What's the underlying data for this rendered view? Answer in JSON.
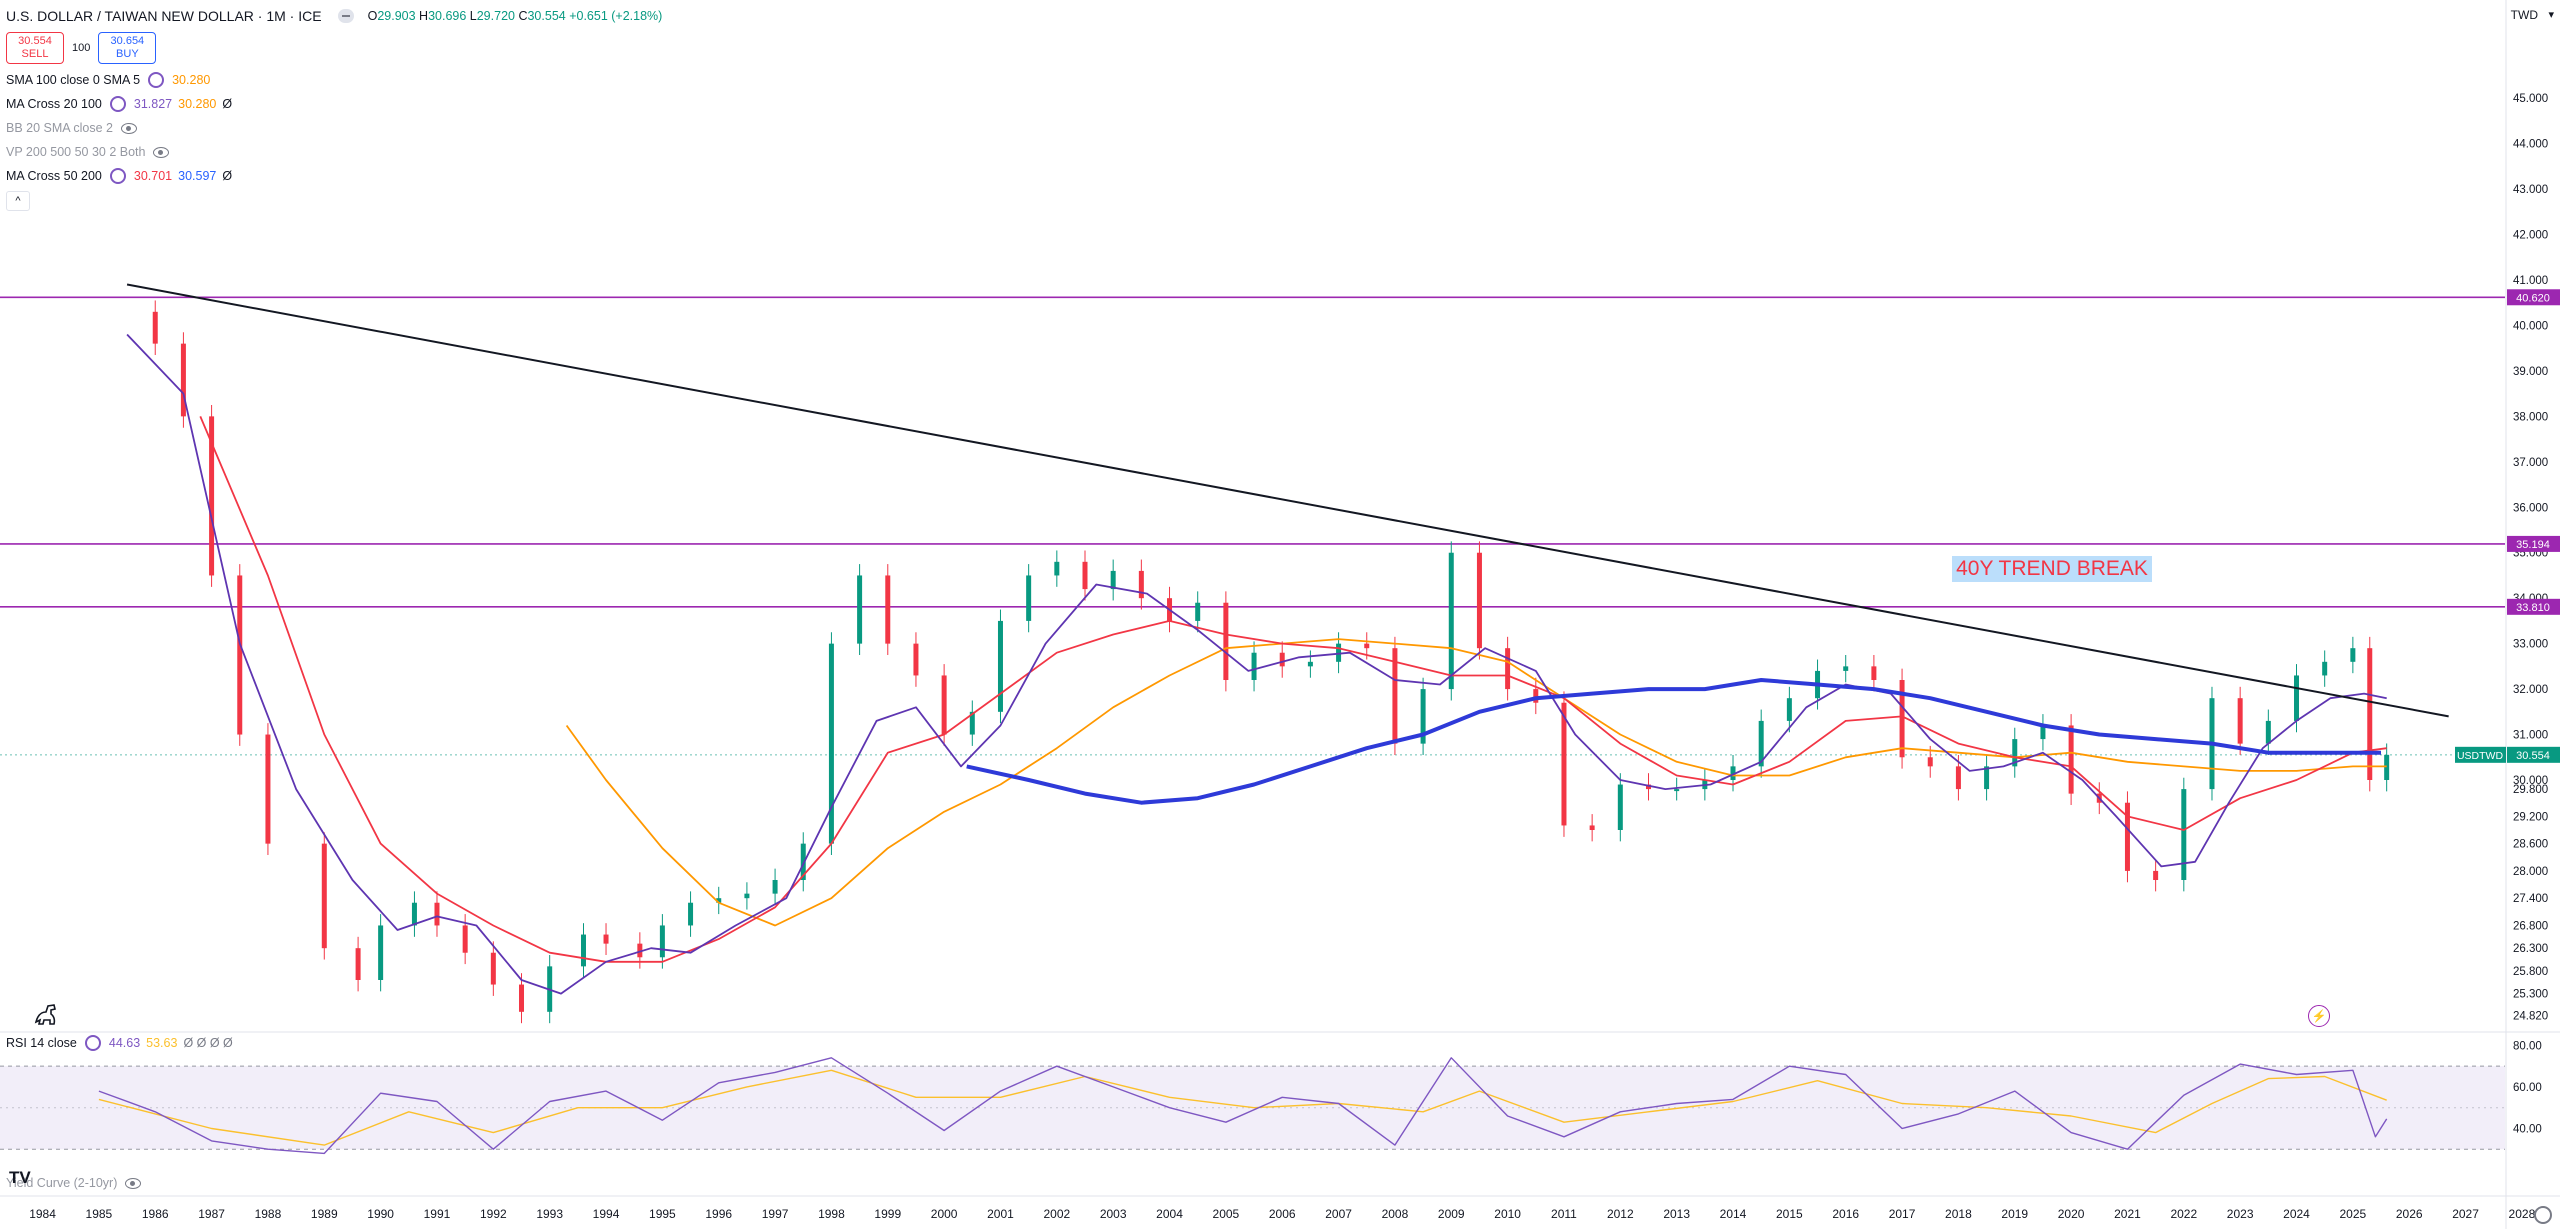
{
  "header": {
    "symbol_title": "U.S. DOLLAR / TAIWAN NEW DOLLAR · 1M · ICE",
    "ohlc": {
      "o_label": "O",
      "o": "29.903",
      "h_label": "H",
      "h": "30.696",
      "l_label": "L",
      "l": "29.720",
      "c_label": "C",
      "c": "30.554",
      "change": "+0.651 (+2.18%)"
    },
    "sell_price": "30.554",
    "sell_label": "SELL",
    "qty": "100",
    "buy_price": "30.654",
    "buy_label": "BUY",
    "currency": "TWD"
  },
  "indicators": [
    {
      "name": "SMA 100 close 0 SMA 5",
      "values": [
        {
          "v": "30.280",
          "color": "#ff9800"
        }
      ],
      "suffix": "",
      "dim": false,
      "gear": true
    },
    {
      "name": "MA Cross 20 100",
      "values": [
        {
          "v": "31.827",
          "color": "#7e57c2"
        },
        {
          "v": "30.280",
          "color": "#ff9800"
        }
      ],
      "suffix": "Ø",
      "dim": false,
      "gear": true
    },
    {
      "name": "BB 20 SMA close 2",
      "values": [],
      "suffix": "",
      "dim": true,
      "gear": false
    },
    {
      "name": "VP 200 500 50 30 2 Both",
      "values": [],
      "suffix": "",
      "dim": true,
      "gear": false
    },
    {
      "name": "MA Cross 50 200",
      "values": [
        {
          "v": "30.701",
          "color": "#f23645"
        },
        {
          "v": "30.597",
          "color": "#2962ff"
        }
      ],
      "suffix": "Ø",
      "dim": false,
      "gear": true
    }
  ],
  "rsi": {
    "name": "RSI 14 close",
    "v1": "44.63",
    "v2": "53.63",
    "suffix": "Ø Ø Ø Ø"
  },
  "yield_curve": {
    "name": "Yield Curve (2-10yr)"
  },
  "annotation": "40Y TREND BREAK",
  "symbol_tag": "USDTWD",
  "icons": {
    "sell": "sell-button",
    "logo": "tradingview-logo-icon",
    "dino": "dinosaur-icon",
    "bolt": "lightning-icon",
    "gear": "settings-gear-icon"
  },
  "chart_data": {
    "type": "candlestick",
    "title": "U.S. DOLLAR / TAIWAN NEW DOLLAR · 1M · ICE",
    "ylim": [
      24.5,
      46.5
    ],
    "xlim": [
      1983.6,
      2027.7
    ],
    "price_ticks": [
      "45.000",
      "44.000",
      "43.000",
      "42.000",
      "41.000",
      "40.000",
      "39.000",
      "38.000",
      "37.000",
      "36.000",
      "35.000",
      "34.000",
      "33.000",
      "32.000",
      "31.000",
      "30.000",
      "29.800",
      "29.200",
      "28.600",
      "28.000",
      "27.400",
      "26.800",
      "26.300",
      "25.800",
      "25.300",
      "24.820"
    ],
    "x_ticks": [
      "1984",
      "1985",
      "1986",
      "1987",
      "1988",
      "1989",
      "1990",
      "1991",
      "1992",
      "1993",
      "1994",
      "1995",
      "1996",
      "1997",
      "1998",
      "1999",
      "2000",
      "2001",
      "2002",
      "2003",
      "2004",
      "2005",
      "2006",
      "2007",
      "2008",
      "2009",
      "2010",
      "2011",
      "2012",
      "2013",
      "2014",
      "2015",
      "2016",
      "2017",
      "2018",
      "2019",
      "2020",
      "2021",
      "2022",
      "2023",
      "2024",
      "2025",
      "2026",
      "2027",
      "2028",
      "202"
    ],
    "hlines": [
      {
        "value": 40.62,
        "label": "40.620",
        "color": "#9c27b0"
      },
      {
        "value": 35.194,
        "label": "35.194",
        "color": "#9c27b0"
      },
      {
        "value": 33.81,
        "label": "33.810",
        "color": "#9c27b0"
      }
    ],
    "last_price": {
      "value": 30.554,
      "label": "30.554",
      "color": "#089981"
    },
    "trendline": {
      "from": [
        1985.5,
        40.9
      ],
      "to": [
        2026.7,
        31.4
      ],
      "color": "#131722"
    },
    "ohlc_series": [
      [
        1985,
        40.3
      ],
      [
        1986,
        39.6
      ],
      [
        1986.5,
        38.0
      ],
      [
        1987,
        34.5
      ],
      [
        1987.5,
        31.0
      ],
      [
        1988,
        28.6
      ],
      [
        1989,
        26.3
      ],
      [
        1989.6,
        25.6
      ],
      [
        1990,
        26.8
      ],
      [
        1990.6,
        27.3
      ],
      [
        1991,
        26.8
      ],
      [
        1991.5,
        26.2
      ],
      [
        1992,
        25.5
      ],
      [
        1992.5,
        24.9
      ],
      [
        1993,
        25.9
      ],
      [
        1993.6,
        26.6
      ],
      [
        1994,
        26.4
      ],
      [
        1994.6,
        26.1
      ],
      [
        1995,
        26.8
      ],
      [
        1995.5,
        27.3
      ],
      [
        1996,
        27.4
      ],
      [
        1996.5,
        27.5
      ],
      [
        1997,
        27.8
      ],
      [
        1997.5,
        28.6
      ],
      [
        1998,
        33.0
      ],
      [
        1998.5,
        34.5
      ],
      [
        1999,
        33.0
      ],
      [
        1999.5,
        32.3
      ],
      [
        2000,
        31.0
      ],
      [
        2000.5,
        31.5
      ],
      [
        2001,
        33.5
      ],
      [
        2001.5,
        34.5
      ],
      [
        2002,
        34.8
      ],
      [
        2002.5,
        34.2
      ],
      [
        2003,
        34.6
      ],
      [
        2003.5,
        34.0
      ],
      [
        2004,
        33.5
      ],
      [
        2004.5,
        33.9
      ],
      [
        2005,
        32.2
      ],
      [
        2005.5,
        32.8
      ],
      [
        2006,
        32.5
      ],
      [
        2006.5,
        32.6
      ],
      [
        2007,
        33.0
      ],
      [
        2007.5,
        32.9
      ],
      [
        2008,
        30.8
      ],
      [
        2008.5,
        32.0
      ],
      [
        2009,
        35.0
      ],
      [
        2009.5,
        32.9
      ],
      [
        2010,
        32.0
      ],
      [
        2010.5,
        31.7
      ],
      [
        2011,
        29.0
      ],
      [
        2011.5,
        28.9
      ],
      [
        2012,
        29.9
      ],
      [
        2012.5,
        29.8
      ],
      [
        2013,
        29.8
      ],
      [
        2013.5,
        30.0
      ],
      [
        2014,
        30.3
      ],
      [
        2014.5,
        31.3
      ],
      [
        2015,
        31.8
      ],
      [
        2015.5,
        32.4
      ],
      [
        2016,
        32.5
      ],
      [
        2016.5,
        32.2
      ],
      [
        2017,
        30.5
      ],
      [
        2017.5,
        30.3
      ],
      [
        2018,
        29.8
      ],
      [
        2018.5,
        30.3
      ],
      [
        2019,
        30.9
      ],
      [
        2019.5,
        31.2
      ],
      [
        2020,
        29.7
      ],
      [
        2020.5,
        29.5
      ],
      [
        2021,
        28.0
      ],
      [
        2021.5,
        27.8
      ],
      [
        2022,
        29.8
      ],
      [
        2022.5,
        31.8
      ],
      [
        2023,
        30.8
      ],
      [
        2023.5,
        31.3
      ],
      [
        2024,
        32.3
      ],
      [
        2024.5,
        32.6
      ],
      [
        2025,
        32.9
      ],
      [
        2025.3,
        30.0
      ],
      [
        2025.6,
        30.554
      ]
    ],
    "ma_purple": [
      [
        1985.5,
        39.8
      ],
      [
        1986.5,
        38.5
      ],
      [
        1987.5,
        33.0
      ],
      [
        1988.5,
        29.8
      ],
      [
        1989.5,
        27.8
      ],
      [
        1990.3,
        26.7
      ],
      [
        1991,
        27.0
      ],
      [
        1991.7,
        26.8
      ],
      [
        1992.5,
        25.6
      ],
      [
        1993.2,
        25.3
      ],
      [
        1994,
        26.0
      ],
      [
        1994.8,
        26.3
      ],
      [
        1995.5,
        26.2
      ],
      [
        1996.3,
        26.8
      ],
      [
        1997.2,
        27.4
      ],
      [
        1998,
        29.4
      ],
      [
        1998.8,
        31.3
      ],
      [
        1999.5,
        31.6
      ],
      [
        2000.3,
        30.3
      ],
      [
        2001,
        31.2
      ],
      [
        2001.8,
        33.0
      ],
      [
        2002.7,
        34.3
      ],
      [
        2003.6,
        34.1
      ],
      [
        2004.5,
        33.3
      ],
      [
        2005.4,
        32.4
      ],
      [
        2006.3,
        32.7
      ],
      [
        2007.2,
        32.8
      ],
      [
        2008,
        32.2
      ],
      [
        2008.8,
        32.1
      ],
      [
        2009.6,
        32.9
      ],
      [
        2010.5,
        32.4
      ],
      [
        2011.2,
        31.0
      ],
      [
        2012,
        30.0
      ],
      [
        2012.8,
        29.8
      ],
      [
        2013.6,
        29.9
      ],
      [
        2014.5,
        30.4
      ],
      [
        2015.3,
        31.6
      ],
      [
        2016,
        32.1
      ],
      [
        2016.8,
        31.9
      ],
      [
        2017.5,
        30.9
      ],
      [
        2018.2,
        30.2
      ],
      [
        2018.8,
        30.3
      ],
      [
        2019.5,
        30.6
      ],
      [
        2020.2,
        30.0
      ],
      [
        2020.8,
        29.2
      ],
      [
        2021.6,
        28.1
      ],
      [
        2022.2,
        28.2
      ],
      [
        2022.8,
        29.5
      ],
      [
        2023.4,
        30.7
      ],
      [
        2024,
        31.3
      ],
      [
        2024.6,
        31.8
      ],
      [
        2025.2,
        31.9
      ],
      [
        2025.6,
        31.8
      ]
    ],
    "ma_red": [
      [
        1986.8,
        38.0
      ],
      [
        1988,
        34.5
      ],
      [
        1989,
        31.0
      ],
      [
        1990,
        28.6
      ],
      [
        1991,
        27.5
      ],
      [
        1992,
        26.8
      ],
      [
        1993,
        26.2
      ],
      [
        1994,
        26.0
      ],
      [
        1995,
        26.0
      ],
      [
        1996,
        26.5
      ],
      [
        1997,
        27.2
      ],
      [
        1998,
        28.6
      ],
      [
        1999,
        30.6
      ],
      [
        2000,
        31.0
      ],
      [
        2001,
        31.9
      ],
      [
        2002,
        32.8
      ],
      [
        2003,
        33.2
      ],
      [
        2004,
        33.5
      ],
      [
        2005,
        33.2
      ],
      [
        2006,
        33.0
      ],
      [
        2007,
        32.9
      ],
      [
        2008,
        32.6
      ],
      [
        2009,
        32.3
      ],
      [
        2010,
        32.3
      ],
      [
        2011,
        31.8
      ],
      [
        2012,
        30.8
      ],
      [
        2013,
        30.1
      ],
      [
        2014,
        29.9
      ],
      [
        2015,
        30.4
      ],
      [
        2016,
        31.3
      ],
      [
        2017,
        31.4
      ],
      [
        2018,
        30.8
      ],
      [
        2019,
        30.5
      ],
      [
        2020,
        30.3
      ],
      [
        2021,
        29.2
      ],
      [
        2022,
        28.9
      ],
      [
        2023,
        29.6
      ],
      [
        2024,
        30.0
      ],
      [
        2025,
        30.6
      ],
      [
        2025.6,
        30.7
      ]
    ],
    "ma_orange": [
      [
        1993.3,
        31.2
      ],
      [
        1994,
        30.0
      ],
      [
        1995,
        28.5
      ],
      [
        1996,
        27.3
      ],
      [
        1997,
        26.8
      ],
      [
        1998,
        27.4
      ],
      [
        1999,
        28.5
      ],
      [
        2000,
        29.3
      ],
      [
        2001,
        29.9
      ],
      [
        2002,
        30.7
      ],
      [
        2003,
        31.6
      ],
      [
        2004,
        32.3
      ],
      [
        2005,
        32.9
      ],
      [
        2006,
        33.0
      ],
      [
        2007,
        33.1
      ],
      [
        2008,
        33.0
      ],
      [
        2009,
        32.9
      ],
      [
        2010,
        32.6
      ],
      [
        2011,
        31.8
      ],
      [
        2012,
        31.0
      ],
      [
        2013,
        30.4
      ],
      [
        2014,
        30.1
      ],
      [
        2015,
        30.1
      ],
      [
        2016,
        30.5
      ],
      [
        2017,
        30.7
      ],
      [
        2018,
        30.6
      ],
      [
        2019,
        30.5
      ],
      [
        2020,
        30.6
      ],
      [
        2021,
        30.4
      ],
      [
        2022,
        30.3
      ],
      [
        2023,
        30.2
      ],
      [
        2024,
        30.2
      ],
      [
        2025,
        30.3
      ],
      [
        2025.6,
        30.3
      ]
    ],
    "ma_blue": [
      [
        2000.4,
        30.3
      ],
      [
        2001.5,
        30.0
      ],
      [
        2002.5,
        29.7
      ],
      [
        2003.5,
        29.5
      ],
      [
        2004.5,
        29.6
      ],
      [
        2005.5,
        29.9
      ],
      [
        2006.5,
        30.3
      ],
      [
        2007.5,
        30.7
      ],
      [
        2008.5,
        31.0
      ],
      [
        2009.5,
        31.5
      ],
      [
        2010.5,
        31.8
      ],
      [
        2011.5,
        31.9
      ],
      [
        2012.5,
        32.0
      ],
      [
        2013.5,
        32.0
      ],
      [
        2014.5,
        32.2
      ],
      [
        2015.5,
        32.1
      ],
      [
        2016.5,
        32.0
      ],
      [
        2017.5,
        31.8
      ],
      [
        2018.5,
        31.5
      ],
      [
        2019.5,
        31.2
      ],
      [
        2020.5,
        31.0
      ],
      [
        2021.5,
        30.9
      ],
      [
        2022.5,
        30.8
      ],
      [
        2023.5,
        30.6
      ],
      [
        2024.5,
        30.6
      ],
      [
        2025.5,
        30.6
      ]
    ],
    "rsi": {
      "ylim": [
        20,
        85
      ],
      "ticks": [
        "80.00",
        "60.00",
        "40.00"
      ],
      "band": [
        30,
        70
      ],
      "series": [
        [
          1985,
          58
        ],
        [
          1986,
          48
        ],
        [
          1987,
          34
        ],
        [
          1988,
          30
        ],
        [
          1989,
          28
        ],
        [
          1990,
          57
        ],
        [
          1991,
          53
        ],
        [
          1992,
          30
        ],
        [
          1993,
          53
        ],
        [
          1994,
          58
        ],
        [
          1995,
          44
        ],
        [
          1996,
          62
        ],
        [
          1997,
          67
        ],
        [
          1998,
          74
        ],
        [
          1999,
          57
        ],
        [
          2000,
          39
        ],
        [
          2001,
          58
        ],
        [
          2002,
          70
        ],
        [
          2003,
          60
        ],
        [
          2004,
          50
        ],
        [
          2005,
          43
        ],
        [
          2006,
          55
        ],
        [
          2007,
          52
        ],
        [
          2008,
          32
        ],
        [
          2009,
          74
        ],
        [
          2010,
          46
        ],
        [
          2011,
          36
        ],
        [
          2012,
          48
        ],
        [
          2013,
          52
        ],
        [
          2014,
          54
        ],
        [
          2015,
          70
        ],
        [
          2016,
          66
        ],
        [
          2017,
          40
        ],
        [
          2018,
          47
        ],
        [
          2019,
          58
        ],
        [
          2020,
          38
        ],
        [
          2021,
          30
        ],
        [
          2022,
          56
        ],
        [
          2023,
          71
        ],
        [
          2024,
          66
        ],
        [
          2025,
          68
        ],
        [
          2025.4,
          36
        ],
        [
          2025.6,
          44.6
        ]
      ],
      "signal": [
        [
          1985,
          54
        ],
        [
          1987,
          40
        ],
        [
          1989,
          32
        ],
        [
          1990.5,
          48
        ],
        [
          1992,
          38
        ],
        [
          1993.5,
          50
        ],
        [
          1995,
          50
        ],
        [
          1996.5,
          60
        ],
        [
          1998,
          68
        ],
        [
          1999.5,
          55
        ],
        [
          2001,
          55
        ],
        [
          2002.5,
          65
        ],
        [
          2004,
          55
        ],
        [
          2005.5,
          50
        ],
        [
          2007,
          52
        ],
        [
          2008.5,
          48
        ],
        [
          2009.5,
          58
        ],
        [
          2011,
          43
        ],
        [
          2012.5,
          48
        ],
        [
          2014,
          53
        ],
        [
          2015.5,
          63
        ],
        [
          2017,
          52
        ],
        [
          2018.5,
          50
        ],
        [
          2020,
          46
        ],
        [
          2021.5,
          38
        ],
        [
          2022.5,
          52
        ],
        [
          2023.5,
          64
        ],
        [
          2024.5,
          65
        ],
        [
          2025.6,
          53.6
        ]
      ]
    }
  }
}
